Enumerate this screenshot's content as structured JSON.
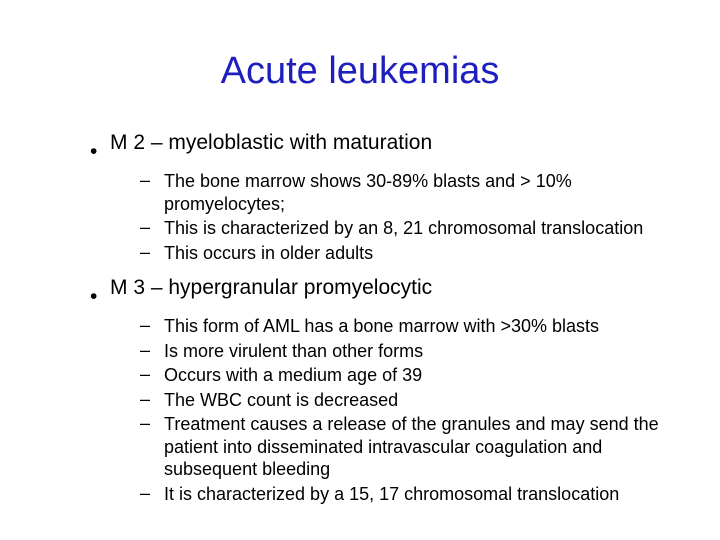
{
  "title": {
    "text": "Acute leukemias",
    "color": "#1f1fbf",
    "fontsize": 38
  },
  "text_color": "#000000",
  "l1_fontsize": 21,
  "l2_fontsize": 18,
  "bullets": {
    "m2": {
      "heading": "M 2 – myeloblastic with maturation",
      "items": [
        "The bone marrow shows 30-89% blasts and > 10% promyelocytes;",
        "This is characterized by an 8, 21 chromosomal translocation",
        "This occurs in older adults"
      ]
    },
    "m3": {
      "heading": "M 3 – hypergranular promyelocytic",
      "items": [
        "This form of AML has a bone marrow with >30% blasts",
        "Is more virulent than other forms",
        "Occurs with a medium age of 39",
        "The WBC count is decreased",
        "Treatment causes a release of the granules and may send the patient into disseminated intravascular coagulation and subsequent bleeding",
        "It is characterized by a 15, 17 chromosomal translocation"
      ]
    }
  }
}
